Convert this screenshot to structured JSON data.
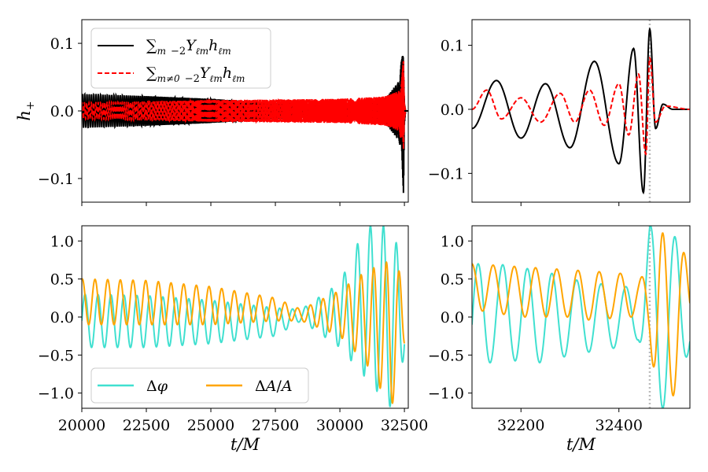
{
  "chart_data": [
    {
      "type": "line",
      "panel": "top-left",
      "ylabel": "h_+",
      "xlabel": "",
      "xlim": [
        20000,
        32650
      ],
      "ylim": [
        -0.135,
        0.135
      ],
      "xticks": [
        20000,
        22500,
        25000,
        27500,
        30000,
        32500
      ],
      "xtick_labels": [
        "",
        "",
        "",
        "",
        "",
        ""
      ],
      "yticks": [
        -0.1,
        0.0,
        0.1
      ],
      "ytick_labels": [
        "−0.1",
        "0.0",
        "0.1"
      ],
      "legend": {
        "position": "top-left",
        "entries": [
          {
            "label": "∑_m −2Y_ℓm h_ℓm",
            "color": "#000000",
            "style": "solid"
          },
          {
            "label": "∑_m≠0 −2Y_ℓm h_ℓm",
            "color": "#ff0000",
            "style": "dashed"
          }
        ]
      },
      "series": [
        {
          "name": "∑_m −2Y_ℓm h_ℓm",
          "color": "#000000",
          "style": "solid",
          "x": [
            20000,
            22500,
            25000,
            27500,
            30000,
            31000,
            31800,
            32300,
            32400,
            32465,
            32500,
            32550
          ],
          "amplitude": [
            0.025,
            0.022,
            0.018,
            0.012,
            0.008,
            0.012,
            0.02,
            0.045,
            0.08,
            0.125,
            0.02,
            0.0
          ]
        },
        {
          "name": "∑_m≠0 −2Y_ℓm h_ℓm",
          "color": "#ff0000",
          "style": "dashed",
          "x": [
            20000,
            22500,
            25000,
            27500,
            30000,
            31000,
            31800,
            32300,
            32400,
            32465,
            32500,
            32550
          ],
          "amplitude": [
            0.012,
            0.014,
            0.016,
            0.017,
            0.018,
            0.02,
            0.022,
            0.03,
            0.05,
            0.08,
            0.015,
            0.0
          ]
        }
      ]
    },
    {
      "type": "line",
      "panel": "top-right",
      "xlabel": "",
      "xlim": [
        32100,
        32545
      ],
      "ylim": [
        -0.145,
        0.14
      ],
      "xticks": [
        32200,
        32400
      ],
      "xtick_labels": [
        "",
        ""
      ],
      "yticks": [
        -0.1,
        0.0,
        0.1
      ],
      "ytick_labels": [
        "−0.1",
        "0.0",
        "0.1"
      ],
      "vline": {
        "x": 32463,
        "color": "#bbbbbb",
        "style": "dotted"
      },
      "series": [
        {
          "name": "∑_m −2Y_ℓm h_ℓm",
          "color": "#000000",
          "style": "solid",
          "x": [
            32100,
            32150,
            32200,
            32250,
            32300,
            32350,
            32400,
            32430,
            32450,
            32463,
            32475,
            32490,
            32510,
            32545
          ],
          "y": [
            -0.03,
            0.045,
            -0.045,
            0.04,
            -0.06,
            0.075,
            -0.085,
            0.095,
            -0.13,
            0.125,
            -0.03,
            0.008,
            0.0,
            0.0
          ]
        },
        {
          "name": "∑_m≠0 −2Y_ℓm h_ℓm",
          "color": "#ff0000",
          "style": "dashed",
          "x": [
            32100,
            32130,
            32160,
            32200,
            32240,
            32280,
            32310,
            32340,
            32370,
            32400,
            32420,
            32440,
            32455,
            32463,
            32475,
            32495,
            32545
          ],
          "y": [
            0.0,
            0.03,
            -0.015,
            0.018,
            -0.02,
            0.025,
            -0.02,
            0.03,
            -0.025,
            0.04,
            -0.04,
            0.055,
            -0.07,
            0.08,
            -0.02,
            0.005,
            0.0
          ]
        }
      ]
    },
    {
      "type": "line",
      "panel": "bottom-left",
      "xlabel": "t/M",
      "xlim": [
        20000,
        32650
      ],
      "ylim": [
        -1.2,
        1.2
      ],
      "xticks": [
        20000,
        22500,
        25000,
        27500,
        30000,
        32500
      ],
      "xtick_labels": [
        "20000",
        "22500",
        "25000",
        "27500",
        "30000",
        "32500"
      ],
      "yticks": [
        -1.0,
        -0.5,
        0.0,
        0.5,
        1.0
      ],
      "ytick_labels": [
        "−1.0",
        "−0.5",
        "0.0",
        "0.5",
        "1.0"
      ],
      "legend": {
        "position": "bottom-left",
        "ncol": 2,
        "entries": [
          {
            "label": "Δφ",
            "color": "#40e0d0",
            "style": "solid"
          },
          {
            "label": "ΔA/A",
            "color": "#ffa500",
            "style": "solid"
          }
        ]
      },
      "series": [
        {
          "name": "Δφ",
          "color": "#40e0d0",
          "style": "solid",
          "x": [
            20000,
            22500,
            25000,
            27500,
            28500,
            30000,
            31000,
            32000,
            32500
          ],
          "upper": [
            0.3,
            0.28,
            0.22,
            0.12,
            0.1,
            0.45,
            1.2,
            1.2,
            0.6
          ],
          "lower": [
            -0.4,
            -0.4,
            -0.35,
            -0.25,
            -0.05,
            -0.4,
            -0.8,
            -1.2,
            -0.5
          ]
        },
        {
          "name": "ΔA/A",
          "color": "#ffa500",
          "style": "solid",
          "x": [
            20000,
            22500,
            25000,
            27500,
            28500,
            30000,
            31000,
            32000,
            32500
          ],
          "upper": [
            0.5,
            0.48,
            0.4,
            0.25,
            0.1,
            0.35,
            0.6,
            0.75,
            0.5
          ],
          "lower": [
            -0.1,
            -0.1,
            -0.1,
            -0.05,
            -0.05,
            -0.25,
            -0.6,
            -1.2,
            -0.4
          ]
        }
      ]
    },
    {
      "type": "line",
      "panel": "bottom-right",
      "xlabel": "t/M",
      "xlim": [
        32100,
        32545
      ],
      "ylim": [
        -1.2,
        1.2
      ],
      "xticks": [
        32200,
        32400
      ],
      "xtick_labels": [
        "32200",
        "32400"
      ],
      "yticks": [
        -1.0,
        -0.5,
        0.0,
        0.5,
        1.0
      ],
      "ytick_labels": [
        "−1.0",
        "−0.5",
        "0.0",
        "0.5",
        "1.0"
      ],
      "vline": {
        "x": 32463,
        "color": "#bbbbbb",
        "style": "dotted"
      },
      "series": [
        {
          "name": "Δφ",
          "color": "#40e0d0",
          "style": "solid",
          "x": [
            32100,
            32150,
            32200,
            32250,
            32300,
            32350,
            32400,
            32440,
            32463,
            32480,
            32500,
            32520,
            32545
          ],
          "upper": [
            0.7,
            0.7,
            0.65,
            0.6,
            0.5,
            0.45,
            0.4,
            0.4,
            1.2,
            1.2,
            1.2,
            1.0,
            0.4
          ],
          "lower": [
            -0.9,
            -0.5,
            -0.6,
            -0.6,
            -0.5,
            -0.45,
            -0.4,
            -0.3,
            -0.9,
            -1.2,
            -1.2,
            -0.9,
            -0.4
          ]
        },
        {
          "name": "ΔA/A",
          "color": "#ffa500",
          "style": "solid",
          "x": [
            32100,
            32150,
            32200,
            32250,
            32300,
            32350,
            32400,
            32440,
            32463,
            32480,
            32500,
            32520,
            32545
          ],
          "upper": [
            0.7,
            0.68,
            0.66,
            0.64,
            0.62,
            0.6,
            0.58,
            0.5,
            0.6,
            1.2,
            1.0,
            1.0,
            0.7
          ],
          "lower": [
            0.1,
            0.05,
            0.0,
            0.0,
            0.0,
            -0.05,
            0.0,
            0.0,
            -0.3,
            -1.2,
            -1.2,
            -0.9,
            -0.2
          ]
        }
      ]
    }
  ]
}
